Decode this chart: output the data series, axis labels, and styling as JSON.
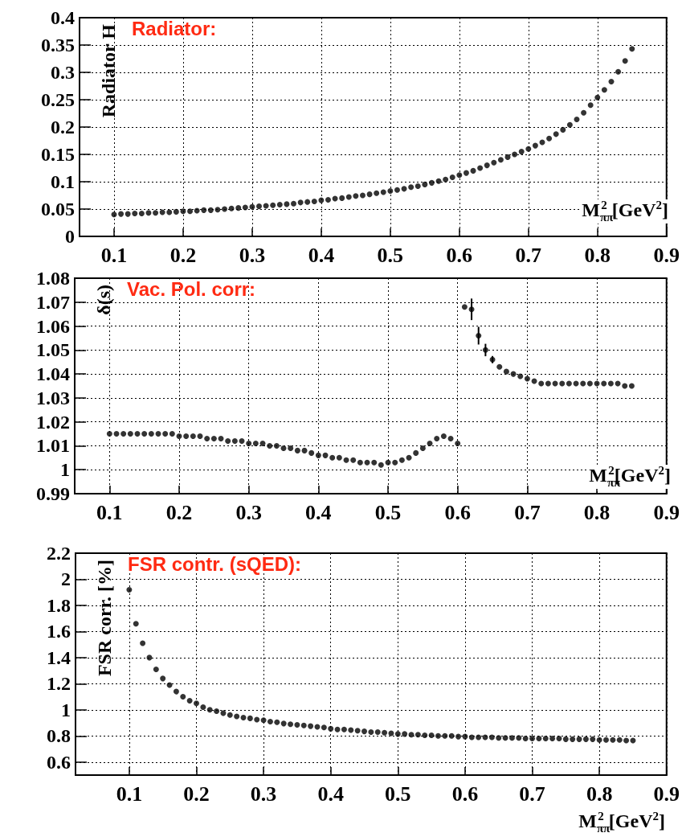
{
  "chart_data": [
    {
      "type": "scatter",
      "title": "Radiator:",
      "ylabel": "Radiator H",
      "xlabel": "M$_{ππ}$$^{2}$ [GeV$^{2}$]",
      "xlim": [
        0.05,
        0.9
      ],
      "xticks": [
        0.1,
        0.2,
        0.3,
        0.4,
        0.5,
        0.6,
        0.7,
        0.8,
        0.9
      ],
      "ylim": [
        0,
        0.4
      ],
      "yticks": [
        0,
        0.05,
        0.1,
        0.15,
        0.2,
        0.25,
        0.3,
        0.35,
        0.4
      ],
      "grid": true,
      "marker": "circle",
      "x": [
        0.1,
        0.11,
        0.12,
        0.13,
        0.14,
        0.15,
        0.16,
        0.17,
        0.18,
        0.19,
        0.2,
        0.21,
        0.22,
        0.23,
        0.24,
        0.25,
        0.26,
        0.27,
        0.28,
        0.29,
        0.3,
        0.31,
        0.32,
        0.33,
        0.34,
        0.35,
        0.36,
        0.37,
        0.38,
        0.39,
        0.4,
        0.41,
        0.42,
        0.43,
        0.44,
        0.45,
        0.46,
        0.47,
        0.48,
        0.49,
        0.5,
        0.51,
        0.52,
        0.53,
        0.54,
        0.55,
        0.56,
        0.57,
        0.58,
        0.59,
        0.6,
        0.61,
        0.62,
        0.63,
        0.64,
        0.65,
        0.66,
        0.67,
        0.68,
        0.69,
        0.7,
        0.71,
        0.72,
        0.73,
        0.74,
        0.75,
        0.76,
        0.77,
        0.78,
        0.79,
        0.8,
        0.81,
        0.82,
        0.83,
        0.84,
        0.85
      ],
      "series": [
        {
          "color": "#000000",
          "values": [
            0.04,
            0.041,
            0.041,
            0.042,
            0.042,
            0.043,
            0.043,
            0.044,
            0.044,
            0.045,
            0.046,
            0.046,
            0.047,
            0.048,
            0.048,
            0.049,
            0.05,
            0.051,
            0.052,
            0.053,
            0.054,
            0.055,
            0.056,
            0.057,
            0.058,
            0.059,
            0.06,
            0.062,
            0.063,
            0.064,
            0.066,
            0.067,
            0.069,
            0.07,
            0.072,
            0.074,
            0.075,
            0.077,
            0.079,
            0.081,
            0.083,
            0.085,
            0.087,
            0.09,
            0.092,
            0.095,
            0.098,
            0.101,
            0.104,
            0.108,
            0.112,
            0.116,
            0.12,
            0.125,
            0.13,
            0.135,
            0.14,
            0.145,
            0.15,
            0.155,
            0.16,
            0.166,
            0.172,
            0.179,
            0.187,
            0.195,
            0.204,
            0.214,
            0.226,
            0.24,
            0.254,
            0.268,
            0.283,
            0.301,
            0.321,
            0.343
          ]
        }
      ]
    },
    {
      "type": "scatter",
      "title": "Vac. Pol. corr:",
      "ylabel": "δ(s)",
      "xlabel": "M$_{ππ}$$^{2}$[GeV$^{2}$]",
      "xlim": [
        0.05,
        0.9
      ],
      "xticks": [
        0.1,
        0.2,
        0.3,
        0.4,
        0.5,
        0.6,
        0.7,
        0.8,
        0.9
      ],
      "ylim": [
        0.99,
        1.08
      ],
      "yticks": [
        0.99,
        1,
        1.01,
        1.02,
        1.03,
        1.04,
        1.05,
        1.06,
        1.07,
        1.08
      ],
      "grid": true,
      "marker": "circle",
      "x": [
        0.1,
        0.11,
        0.12,
        0.13,
        0.14,
        0.15,
        0.16,
        0.17,
        0.18,
        0.19,
        0.2,
        0.21,
        0.22,
        0.23,
        0.24,
        0.25,
        0.26,
        0.27,
        0.28,
        0.29,
        0.3,
        0.31,
        0.32,
        0.33,
        0.34,
        0.35,
        0.36,
        0.37,
        0.38,
        0.39,
        0.4,
        0.41,
        0.42,
        0.43,
        0.44,
        0.45,
        0.46,
        0.47,
        0.48,
        0.49,
        0.5,
        0.51,
        0.52,
        0.53,
        0.54,
        0.55,
        0.56,
        0.57,
        0.58,
        0.59,
        0.6,
        0.61,
        0.62,
        0.63,
        0.64,
        0.65,
        0.66,
        0.67,
        0.68,
        0.69,
        0.7,
        0.71,
        0.72,
        0.73,
        0.74,
        0.75,
        0.76,
        0.77,
        0.78,
        0.79,
        0.8,
        0.81,
        0.82,
        0.83,
        0.84,
        0.85
      ],
      "series": [
        {
          "color": "#000000",
          "values": [
            1.015,
            1.015,
            1.015,
            1.015,
            1.015,
            1.015,
            1.015,
            1.015,
            1.015,
            1.015,
            1.014,
            1.014,
            1.014,
            1.014,
            1.013,
            1.013,
            1.013,
            1.012,
            1.012,
            1.012,
            1.011,
            1.011,
            1.011,
            1.01,
            1.01,
            1.009,
            1.009,
            1.008,
            1.008,
            1.007,
            1.006,
            1.006,
            1.005,
            1.005,
            1.004,
            1.004,
            1.003,
            1.003,
            1.003,
            1.002,
            1.003,
            1.003,
            1.004,
            1.005,
            1.007,
            1.009,
            1.011,
            1.013,
            1.014,
            1.013,
            1.011,
            1.068,
            1.067,
            1.056,
            1.05,
            1.046,
            1.043,
            1.041,
            1.04,
            1.039,
            1.038,
            1.037,
            1.036,
            1.036,
            1.036,
            1.036,
            1.036,
            1.036,
            1.036,
            1.036,
            1.036,
            1.036,
            1.036,
            1.036,
            1.035,
            1.035
          ],
          "errors": [
            null,
            null,
            null,
            null,
            null,
            null,
            null,
            null,
            null,
            null,
            null,
            null,
            null,
            null,
            null,
            null,
            null,
            null,
            null,
            null,
            null,
            null,
            null,
            null,
            null,
            null,
            null,
            null,
            null,
            null,
            null,
            null,
            null,
            null,
            null,
            null,
            null,
            null,
            null,
            null,
            null,
            null,
            null,
            null,
            null,
            null,
            null,
            null,
            null,
            null,
            null,
            null,
            0.0045,
            0.0037,
            0.0026,
            0.0015,
            null,
            null,
            null,
            null,
            null,
            null,
            null,
            null,
            null,
            null,
            null,
            null,
            null,
            null,
            null,
            null,
            null,
            null,
            null,
            null
          ]
        }
      ]
    },
    {
      "type": "scatter",
      "title": "FSR contr. (sQED):",
      "ylabel": "FSR corr. [%]",
      "xlabel": "M$_{ππ}$$^{2}$ [GeV$^{2}$]",
      "xlim": [
        0.02,
        0.9
      ],
      "xticks": [
        0.1,
        0.2,
        0.3,
        0.4,
        0.5,
        0.6,
        0.7,
        0.8,
        0.9
      ],
      "ylim": [
        0.5,
        2.2
      ],
      "yticks": [
        0.6,
        0.8,
        1,
        1.2,
        1.4,
        1.6,
        1.8,
        2,
        2.2
      ],
      "grid": true,
      "marker": "circle",
      "x": [
        0.1,
        0.11,
        0.12,
        0.13,
        0.14,
        0.15,
        0.16,
        0.17,
        0.18,
        0.19,
        0.2,
        0.21,
        0.22,
        0.23,
        0.24,
        0.25,
        0.26,
        0.27,
        0.28,
        0.29,
        0.3,
        0.31,
        0.32,
        0.33,
        0.34,
        0.35,
        0.36,
        0.37,
        0.38,
        0.39,
        0.4,
        0.41,
        0.42,
        0.43,
        0.44,
        0.45,
        0.46,
        0.47,
        0.48,
        0.49,
        0.5,
        0.51,
        0.52,
        0.53,
        0.54,
        0.55,
        0.56,
        0.57,
        0.58,
        0.59,
        0.6,
        0.61,
        0.62,
        0.63,
        0.64,
        0.65,
        0.66,
        0.67,
        0.68,
        0.69,
        0.7,
        0.71,
        0.72,
        0.73,
        0.74,
        0.75,
        0.76,
        0.77,
        0.78,
        0.79,
        0.8,
        0.81,
        0.82,
        0.83,
        0.84,
        0.85
      ],
      "series": [
        {
          "color": "#000000",
          "values": [
            1.92,
            1.66,
            1.51,
            1.4,
            1.31,
            1.24,
            1.19,
            1.14,
            1.1,
            1.07,
            1.05,
            1.02,
            1.0,
            0.99,
            0.975,
            0.96,
            0.95,
            0.94,
            0.935,
            0.925,
            0.92,
            0.91,
            0.905,
            0.895,
            0.89,
            0.885,
            0.88,
            0.875,
            0.87,
            0.865,
            0.855,
            0.85,
            0.85,
            0.845,
            0.84,
            0.835,
            0.83,
            0.83,
            0.825,
            0.82,
            0.815,
            0.815,
            0.81,
            0.81,
            0.805,
            0.805,
            0.8,
            0.8,
            0.8,
            0.795,
            0.795,
            0.79,
            0.79,
            0.79,
            0.79,
            0.785,
            0.785,
            0.785,
            0.785,
            0.78,
            0.78,
            0.78,
            0.78,
            0.78,
            0.78,
            0.775,
            0.775,
            0.775,
            0.775,
            0.775,
            0.77,
            0.77,
            0.77,
            0.77,
            0.765,
            0.765
          ]
        }
      ]
    }
  ]
}
